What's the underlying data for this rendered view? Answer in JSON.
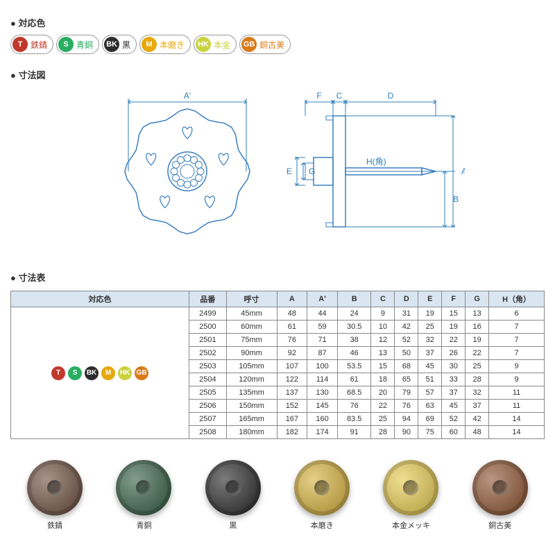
{
  "section_colors_title": "● 対応色",
  "section_diagram_title": "● 寸法図",
  "section_table_title": "● 寸法表",
  "badges": [
    {
      "code": "T",
      "label": "鉄錆",
      "bg": "#c0392b"
    },
    {
      "code": "S",
      "label": "青銅",
      "bg": "#27ae60"
    },
    {
      "code": "BK",
      "label": "黒",
      "bg": "#2c2c2c"
    },
    {
      "code": "M",
      "label": "本磨き",
      "bg": "#e8a80c"
    },
    {
      "code": "HK",
      "label": "本金",
      "bg": "#c9d23e"
    },
    {
      "code": "GB",
      "label": "銅古美",
      "bg": "#d97a1a"
    }
  ],
  "table": {
    "headers": [
      "対応色",
      "品番",
      "呼寸",
      "A",
      "A'",
      "B",
      "C",
      "D",
      "E",
      "F",
      "G",
      "H（角）"
    ],
    "rows": [
      [
        "2499",
        "45mm",
        "48",
        "44",
        "24",
        "9",
        "31",
        "19",
        "15",
        "13",
        "6"
      ],
      [
        "2500",
        "60mm",
        "61",
        "59",
        "30.5",
        "10",
        "42",
        "25",
        "19",
        "16",
        "7"
      ],
      [
        "2501",
        "75mm",
        "76",
        "71",
        "38",
        "12",
        "52",
        "32",
        "22",
        "19",
        "7"
      ],
      [
        "2502",
        "90mm",
        "92",
        "87",
        "46",
        "13",
        "50",
        "37",
        "26",
        "22",
        "7"
      ],
      [
        "2503",
        "105mm",
        "107",
        "100",
        "53.5",
        "15",
        "68",
        "45",
        "30",
        "25",
        "9"
      ],
      [
        "2504",
        "120mm",
        "122",
        "114",
        "61",
        "18",
        "65",
        "51",
        "33",
        "28",
        "9"
      ],
      [
        "2505",
        "135mm",
        "137",
        "130",
        "68.5",
        "20",
        "79",
        "57",
        "37",
        "32",
        "11"
      ],
      [
        "2506",
        "150mm",
        "152",
        "145",
        "76",
        "22",
        "76",
        "63",
        "45",
        "37",
        "11"
      ],
      [
        "2507",
        "165mm",
        "167",
        "160",
        "83.5",
        "25",
        "94",
        "69",
        "52",
        "42",
        "14"
      ],
      [
        "2508",
        "180mm",
        "182",
        "174",
        "91",
        "28",
        "90",
        "75",
        "60",
        "48",
        "14"
      ]
    ]
  },
  "diagram_labels": {
    "Aprime": "A'",
    "F": "F",
    "C": "C",
    "D": "D",
    "A": "A",
    "B": "B",
    "E": "E",
    "G": "G",
    "H": "H(角)"
  },
  "diagram_style": {
    "line_color": "#3a7fbf",
    "dim_color": "#2c7fb8",
    "text_color": "#2c7fb8",
    "stroke_width": 1.5,
    "fontsize": 12
  },
  "thumbs": [
    {
      "label": "鉄錆",
      "fill": "#6a4a3a"
    },
    {
      "label": "青銅",
      "fill": "#2e5a3e"
    },
    {
      "label": "黒",
      "fill": "#222222"
    },
    {
      "label": "本磨き",
      "fill": "#d4af37"
    },
    {
      "label": "本金メッキ",
      "fill": "#e6c94a"
    },
    {
      "label": "銅古美",
      "fill": "#8a4e2a"
    }
  ]
}
